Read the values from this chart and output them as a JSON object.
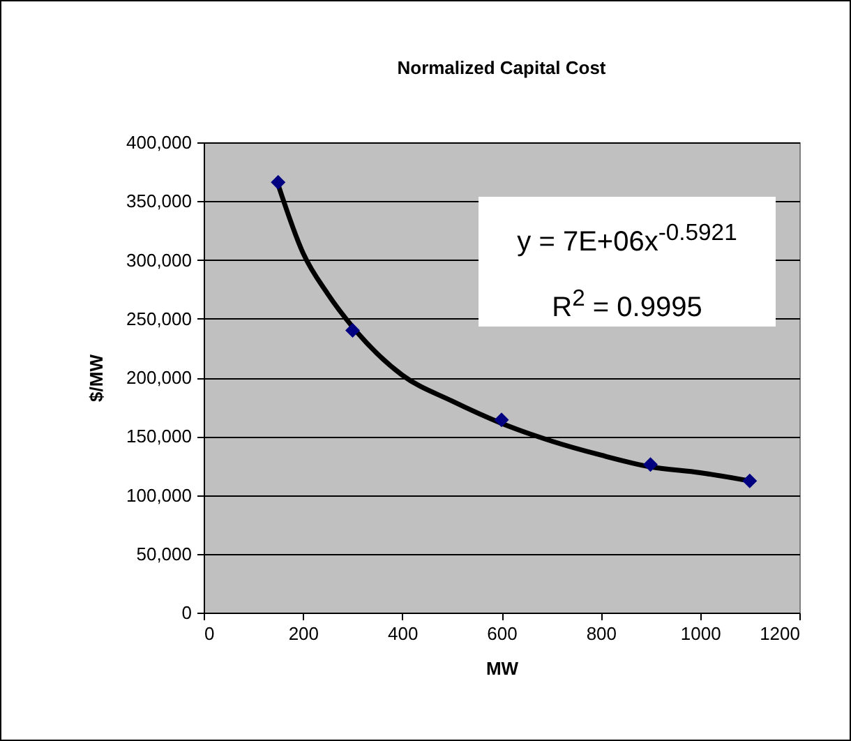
{
  "chart_data": {
    "type": "scatter",
    "title": "Normalized Capital Cost",
    "xlabel": "MW",
    "ylabel": "$/MW",
    "xlim": [
      0,
      1200
    ],
    "xticks": [
      0,
      200,
      400,
      600,
      800,
      1000,
      1200
    ],
    "ylim": [
      0,
      400000
    ],
    "yticks": [
      0,
      {
        "value": 50000,
        "label": "50,000"
      },
      {
        "value": 100000,
        "label": "100,000"
      },
      {
        "value": 150000,
        "label": "150,000"
      },
      {
        "value": 200000,
        "label": "200,000"
      },
      {
        "value": 250000,
        "label": "250,000"
      },
      {
        "value": 300000,
        "label": "300,000"
      },
      {
        "value": 350000,
        "label": "350,000"
      },
      {
        "value": 400000,
        "label": "400,000"
      }
    ],
    "grid": "y",
    "series": [
      {
        "marker": "diamond",
        "color": "#000080",
        "x": [
          150,
          300,
          600,
          900,
          1100
        ],
        "values": [
          366000,
          240000,
          164000,
          126000,
          112000
        ]
      },
      {
        "type": "line",
        "marker": "none",
        "color": "#000000",
        "x": [
          150,
          200,
          250,
          300,
          400,
          500,
          600,
          700,
          800,
          900,
          1000,
          1100
        ],
        "values": [
          364000,
          306000,
          271000,
          243000,
          202000,
          180000,
          161000,
          146000,
          134000,
          124000,
          119000,
          112000
        ]
      }
    ],
    "annotations": [
      "y = 7E+06x$^{-0.5921}$",
      "R$^{2}$ = 0.9995"
    ]
  }
}
